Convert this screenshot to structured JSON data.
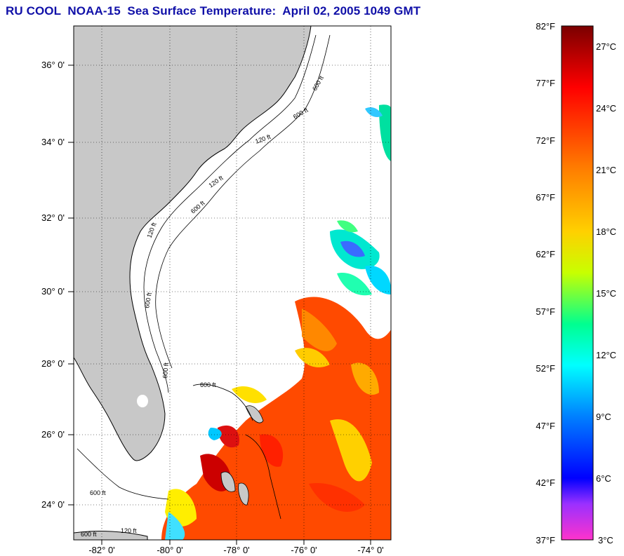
{
  "title": "RU COOL  NOAA-15  Sea Surface Temperature:  April 02, 2005 1049 GMT",
  "map": {
    "lat_labels": [
      "36° 0'",
      "34° 0'",
      "32° 0'",
      "30° 0'",
      "28° 0'",
      "26° 0'",
      "24° 0'"
    ],
    "lon_labels": [
      "-82° 0'",
      "-80° 0'",
      "-78° 0'",
      "-76° 0'",
      "-74° 0'"
    ],
    "contour_labels": [
      "600 ft",
      "120 ft",
      "600 ft",
      "120 ft",
      "600 ft",
      "120 ft",
      "600 ft",
      "600 ft",
      "600 ft",
      "600 ft",
      "120 ft",
      "600 ft"
    ],
    "colors": {
      "land": "#c8c8c8",
      "water": "#ffffff",
      "grid": "#000000"
    }
  },
  "colorbar": {
    "f_labels": [
      "82°F",
      "77°F",
      "72°F",
      "67°F",
      "62°F",
      "57°F",
      "52°F",
      "47°F",
      "42°F",
      "37°F"
    ],
    "c_labels": [
      "27°C",
      "24°C",
      "21°C",
      "18°C",
      "15°C",
      "12°C",
      "9°C",
      "6°C",
      "3°C"
    ],
    "gradient_stops": [
      "#7a0000",
      "#ff0000",
      "#ff7f00",
      "#ffff00",
      "#7fff00",
      "#00ffff",
      "#007fff",
      "#0000ff",
      "#8a2be2",
      "#ff33cc"
    ]
  }
}
